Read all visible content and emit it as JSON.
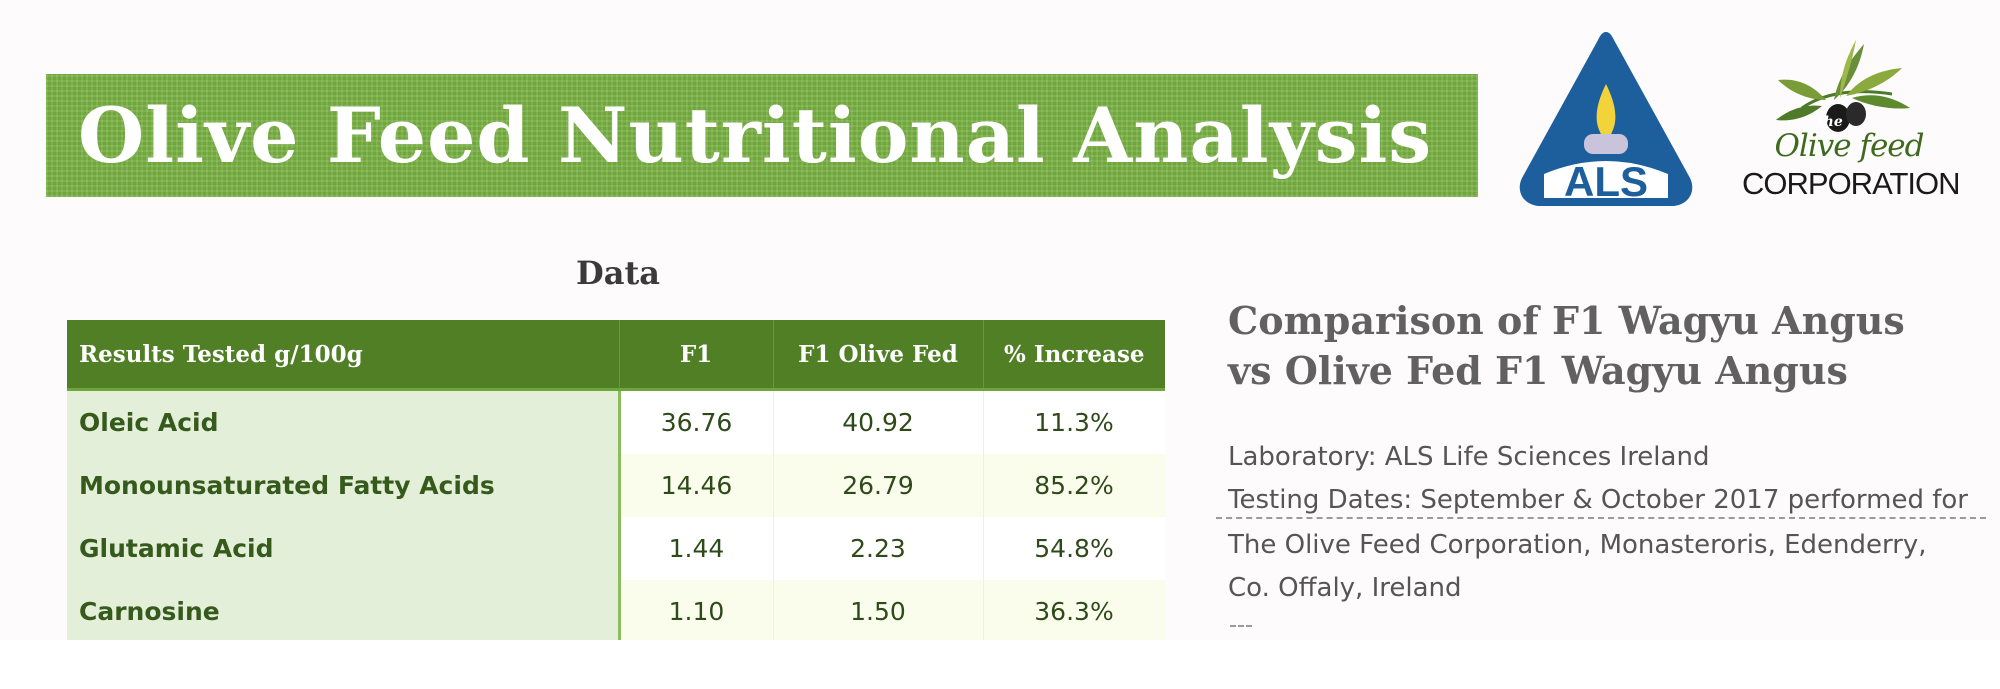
{
  "banner": {
    "title": "Olive Feed Nutritional Analysis"
  },
  "logos": {
    "als": {
      "text": "ALS",
      "icon": "als-flame-logo-icon",
      "colors": {
        "blue": "#1d5f9c",
        "flame": "#f2d33a"
      }
    },
    "olive_feed": {
      "small": "the",
      "script": "Olive feed",
      "word": "CORPORATION",
      "icon": "olive-branch-icon"
    }
  },
  "table": {
    "heading": "Data",
    "columns": [
      "Results Tested g/100g",
      "F1",
      "F1 Olive Fed",
      "% Increase"
    ],
    "rows": [
      {
        "name": "Oleic Acid",
        "f1": "36.76",
        "olive": "40.92",
        "increase": "11.3%"
      },
      {
        "name": "Monounsaturated Fatty Acids",
        "f1": "14.46",
        "olive": "26.79",
        "increase": "85.2%"
      },
      {
        "name": "Glutamic Acid",
        "f1": "1.44",
        "olive": "2.23",
        "increase": "54.8%"
      },
      {
        "name": "Carnosine",
        "f1": "1.10",
        "olive": "1.50",
        "increase": "36.3%"
      }
    ]
  },
  "comparison": {
    "title_line1": "Comparison of F1 Wagyu Angus",
    "title_line2": "vs Olive Fed F1 Wagyu Angus",
    "lab": "Laboratory: ALS Life Sciences Ireland",
    "dates": "Testing Dates: September & October 2017 performed for",
    "address1": "The Olive Feed Corporation, Monasteroris, Edenderry,",
    "address2": "Co. Offaly, Ireland"
  },
  "colors": {
    "banner": "#78b043",
    "header": "#507f25",
    "name_cell": "#e4efda"
  }
}
